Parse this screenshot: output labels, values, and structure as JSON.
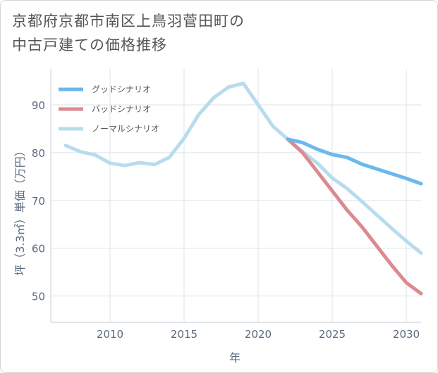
{
  "header": {
    "title_line1": "京都府京都市南区上鳥羽菅田町の",
    "title_line2": "中古戸建ての価格推移"
  },
  "chart_data": {
    "type": "line",
    "xlabel": "年",
    "ylabel": "坪（3.3㎡）単価（万円）",
    "xlim": [
      2006,
      2031
    ],
    "ylim": [
      44.5,
      97.5
    ],
    "x_ticks": [
      2010,
      2015,
      2020,
      2025,
      2030
    ],
    "y_ticks": [
      50,
      60,
      70,
      80,
      90
    ],
    "grid": true,
    "legend_position": "top-left",
    "series": [
      {
        "name": "グッドシナリオ",
        "color": "#6ab8ee",
        "x": [
          2022,
          2023,
          2024,
          2025,
          2026,
          2027,
          2028,
          2029,
          2030,
          2031
        ],
        "y": [
          82.8,
          82.1,
          80.7,
          79.6,
          79.0,
          77.6,
          76.6,
          75.6,
          74.6,
          73.5
        ]
      },
      {
        "name": "バッドシナリオ",
        "color": "#db8a90",
        "x": [
          2022,
          2023,
          2024,
          2025,
          2026,
          2027,
          2028,
          2029,
          2030,
          2031
        ],
        "y": [
          82.8,
          80.0,
          76.0,
          72.0,
          68.0,
          64.5,
          60.5,
          56.5,
          52.8,
          50.5
        ]
      },
      {
        "name": "ノーマルシナリオ",
        "color": "#b8dcee",
        "x": [
          2007,
          2008,
          2009,
          2010,
          2011,
          2012,
          2013,
          2014,
          2015,
          2016,
          2017,
          2018,
          2019,
          2020,
          2021,
          2022,
          2023,
          2024,
          2025,
          2026,
          2027,
          2028,
          2029,
          2030,
          2031
        ],
        "y": [
          81.5,
          80.2,
          79.5,
          77.8,
          77.3,
          77.9,
          77.5,
          79.0,
          83.0,
          88.0,
          91.5,
          93.7,
          94.5,
          90.0,
          85.5,
          82.8,
          80.2,
          77.8,
          74.7,
          72.5,
          69.8,
          67.0,
          64.2,
          61.5,
          59.0
        ]
      }
    ]
  }
}
